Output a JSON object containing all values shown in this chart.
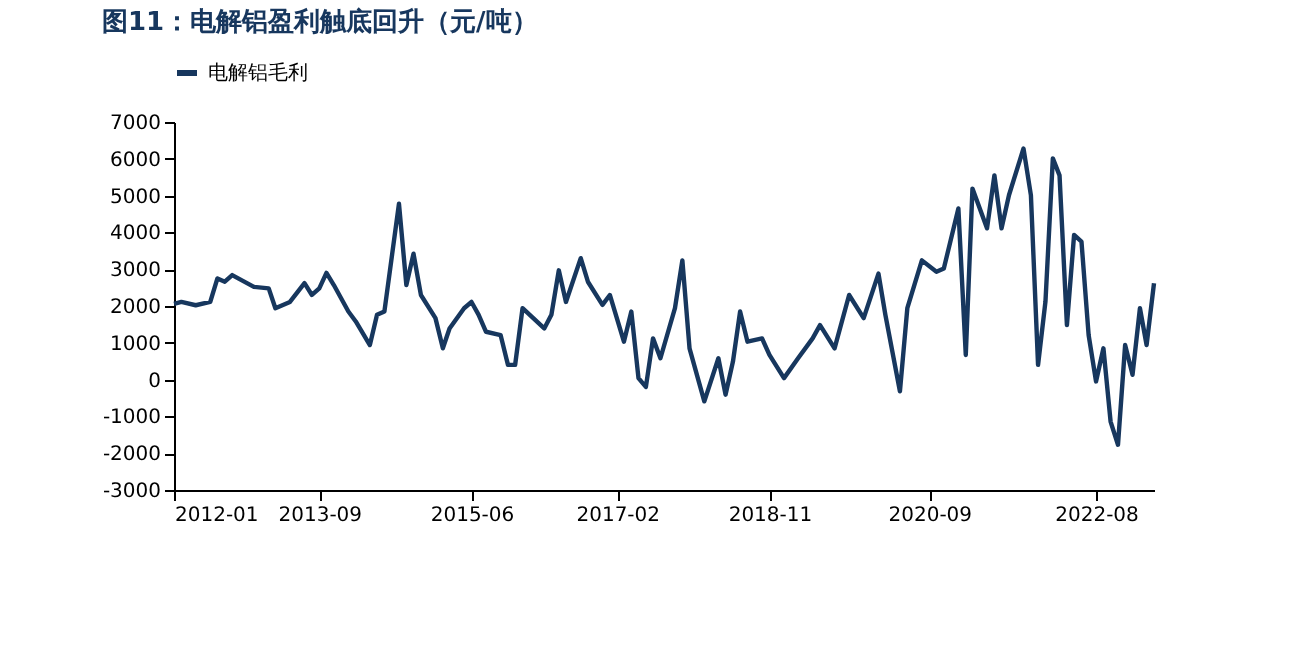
{
  "chart_data": {
    "type": "line",
    "title": "图11：电解铝盈利触底回升（元/吨）",
    "x": [
      "2012-01",
      "2012-02",
      "2012-04",
      "2012-06",
      "2012-07",
      "2012-08",
      "2012-09",
      "2012-12",
      "2013-02",
      "2013-03",
      "2013-05",
      "2013-07",
      "2013-08",
      "2013-09",
      "2013-10",
      "2013-11",
      "2014-01",
      "2014-02",
      "2014-04",
      "2014-05",
      "2014-06",
      "2014-08",
      "2014-09",
      "2014-10",
      "2014-11",
      "2015-01",
      "2015-02",
      "2015-03",
      "2015-05",
      "2015-06",
      "2015-07",
      "2015-08",
      "2015-10",
      "2015-11",
      "2015-12",
      "2016-01",
      "2016-04",
      "2016-05",
      "2016-06",
      "2016-07",
      "2016-09",
      "2016-10",
      "2016-12",
      "2017-01",
      "2017-03",
      "2017-04",
      "2017-05",
      "2017-06",
      "2017-07",
      "2017-08",
      "2017-10",
      "2017-11",
      "2017-12",
      "2018-02",
      "2018-04",
      "2018-05",
      "2018-06",
      "2018-07",
      "2018-08",
      "2018-10",
      "2018-11",
      "2019-01",
      "2019-03",
      "2019-05",
      "2019-06",
      "2019-08",
      "2019-10",
      "2019-12",
      "2020-02",
      "2020-03",
      "2020-05",
      "2020-06",
      "2020-08",
      "2020-10",
      "2020-11",
      "2021-01",
      "2021-02",
      "2021-03",
      "2021-05",
      "2021-06",
      "2021-07",
      "2021-08",
      "2021-10",
      "2021-11",
      "2021-12",
      "2022-01",
      "2022-02",
      "2022-03",
      "2022-04",
      "2022-05",
      "2022-06",
      "2022-07",
      "2022-08",
      "2022-09",
      "2022-10",
      "2022-11",
      "2022-12",
      "2023-01",
      "2023-02",
      "2023-03",
      "2023-04"
    ],
    "series": [
      {
        "name": "电解铝毛利",
        "color": "#17375e",
        "values": [
          2060,
          2110,
          2020,
          2110,
          2750,
          2660,
          2840,
          2520,
          2480,
          1940,
          2110,
          2620,
          2300,
          2480,
          2900,
          2570,
          1850,
          1580,
          940,
          1760,
          1850,
          4780,
          2570,
          3420,
          2300,
          1670,
          850,
          1390,
          1940,
          2110,
          1760,
          1300,
          1210,
          400,
          400,
          1940,
          1390,
          1760,
          2970,
          2110,
          3300,
          2660,
          2030,
          2300,
          1030,
          1850,
          40,
          -200,
          1120,
          580,
          1940,
          3240,
          850,
          -590,
          580,
          -410,
          490,
          1850,
          1030,
          1120,
          670,
          40,
          580,
          1120,
          1480,
          850,
          2300,
          1670,
          2880,
          1760,
          -320,
          1940,
          3240,
          2930,
          3020,
          4650,
          670,
          5190,
          4110,
          5550,
          4110,
          5010,
          6280,
          5010,
          400,
          2120,
          6010,
          5550,
          1480,
          3930,
          3750,
          1210,
          -50,
          850,
          -1140,
          -1770,
          940,
          130,
          1940,
          940,
          2620
        ]
      }
    ],
    "xlim": [
      "2012-01",
      "2023-04"
    ],
    "xticks": [
      "2012-01",
      "2013-09",
      "2015-06",
      "2017-02",
      "2018-11",
      "2020-09",
      "2022-08"
    ],
    "ylim": [
      -3000,
      7000
    ],
    "yticks": [
      -3000,
      -2000,
      -1000,
      0,
      1000,
      2000,
      3000,
      4000,
      5000,
      6000,
      7000
    ],
    "legend": "top",
    "grid": false,
    "marker": "none",
    "line_style": "solid"
  }
}
